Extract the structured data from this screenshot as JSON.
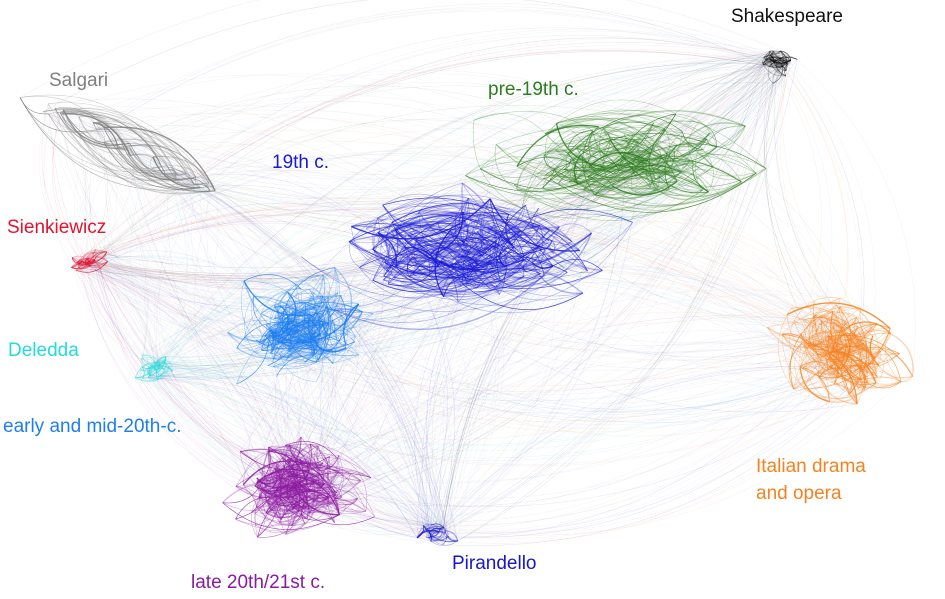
{
  "figure": {
    "clusters": [
      {
        "id": "shakespeare",
        "label": "Shakespeare",
        "color": "#111111"
      },
      {
        "id": "salgari",
        "label": "Salgari",
        "color": "#7f7f7f"
      },
      {
        "id": "pre19",
        "label": "pre-19th c.",
        "color": "#2e7d1e"
      },
      {
        "id": "c19",
        "label": "19th c.",
        "color": "#1a1ad6"
      },
      {
        "id": "sienkiewicz",
        "label": "Sienkiewicz",
        "color": "#e0142d"
      },
      {
        "id": "deledda",
        "label": "Deledda",
        "color": "#22dcdc"
      },
      {
        "id": "early20",
        "label": "early and mid-20th-c.",
        "color": "#1e7ef0"
      },
      {
        "id": "italian",
        "label_lines": [
          "Italian drama",
          "and opera"
        ],
        "color": "#f6821f"
      },
      {
        "id": "pirandello",
        "label": "Pirandello",
        "color": "#1717c8"
      },
      {
        "id": "late20",
        "label": "late 20th/21st c.",
        "color": "#8c1aa0"
      }
    ]
  }
}
